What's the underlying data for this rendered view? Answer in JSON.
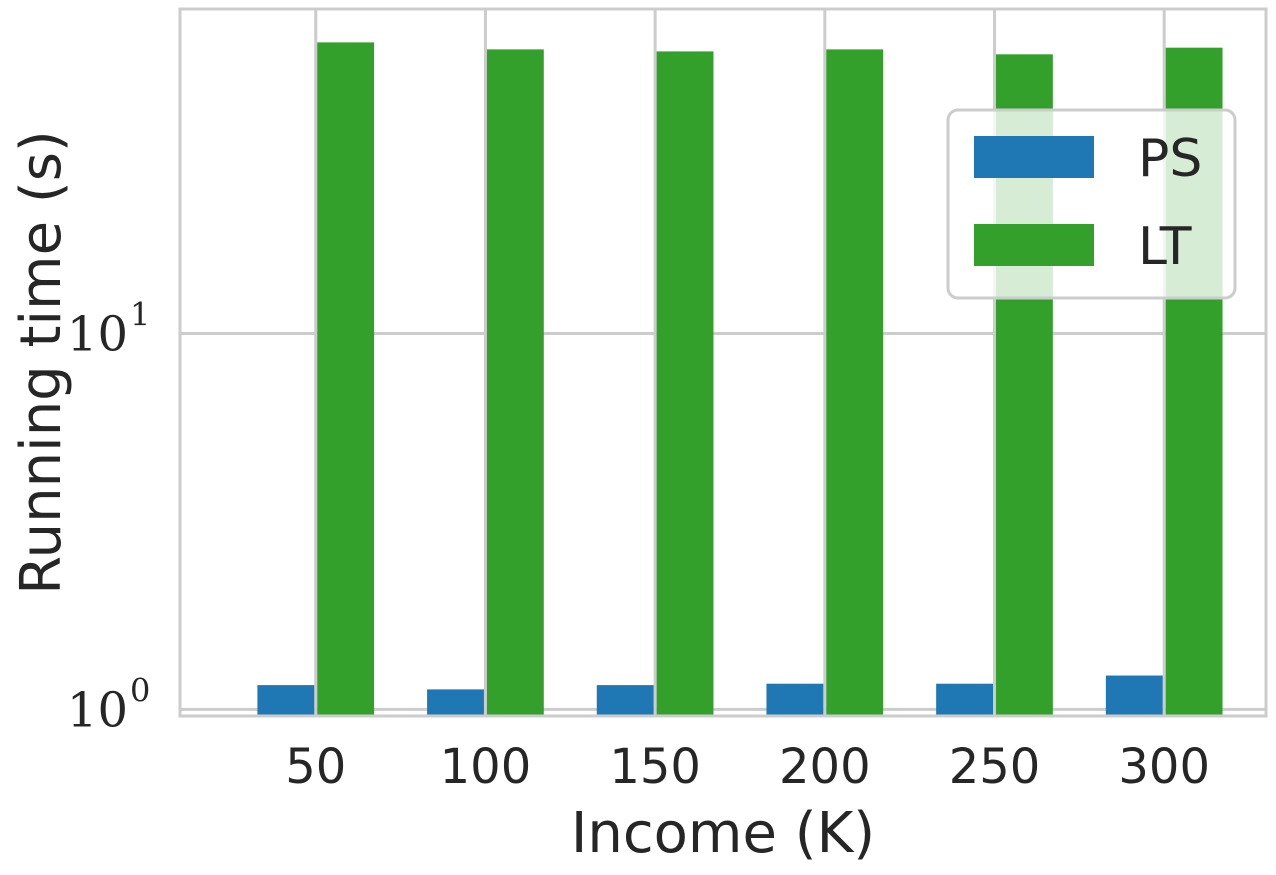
{
  "chart_data": {
    "type": "bar",
    "categories": [
      "50",
      "100",
      "150",
      "200",
      "250",
      "300"
    ],
    "series": [
      {
        "name": "PS",
        "color": "#1f77b4",
        "values": [
          1.16,
          1.13,
          1.16,
          1.17,
          1.17,
          1.23
        ]
      },
      {
        "name": "LT",
        "color": "#33a02c",
        "values": [
          59.5,
          57.0,
          56.3,
          57.0,
          55.3,
          57.6
        ]
      }
    ],
    "xlabel": "Income (K)",
    "ylabel": "Running time (s)",
    "yscale": "log",
    "ylim": [
      0.96,
      73
    ],
    "yticks": [
      {
        "value": 1,
        "base": "10",
        "exp": "0"
      },
      {
        "value": 10,
        "base": "10",
        "exp": "1"
      }
    ],
    "grid": true,
    "legend": "upper right"
  }
}
